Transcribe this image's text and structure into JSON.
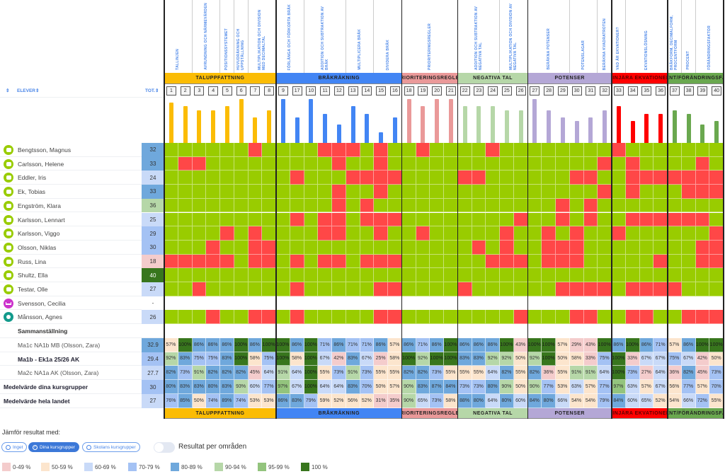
{
  "header": {
    "sort_icon": "⇕",
    "students_label": "ELEVER⇕",
    "total_label": "TOT.⇕"
  },
  "colors": {
    "correct": "#99cc00",
    "wrong": "#ff4747",
    "label_blue": "#4a86e8"
  },
  "groups": [
    {
      "name": "Taluppfattning",
      "color": "#fbbc04",
      "span": 8
    },
    {
      "name": "Bråkräkning",
      "color": "#4285f4",
      "span": 9
    },
    {
      "name": "Prioriteringsregler",
      "color": "#ea9999",
      "span": 4
    },
    {
      "name": "Negativa tal",
      "color": "#b6d7a8",
      "span": 5
    },
    {
      "name": "Potenser",
      "color": "#b4a7d6",
      "span": 6
    },
    {
      "name": "Linjära ekvationer",
      "color": "#ff0000",
      "span": 4
    },
    {
      "name": "Procent/Förändringsfaktor",
      "color": "#6aa84f",
      "span": 4
    }
  ],
  "subtopics": [
    {
      "label": "Tallinjen",
      "span": 2
    },
    {
      "label": "Avrundning och närmevärden",
      "span": 2
    },
    {
      "label": "Positionssystemet",
      "span": 1
    },
    {
      "label": "Huvudräkning och uppställning",
      "span": 1
    },
    {
      "label": "Multiplikation och division med decimaltal",
      "span": 2
    },
    {
      "label": "Förlänga och förkorta bråk",
      "span": 2
    },
    {
      "label": "Addition och subtraktion av bråk",
      "span": 3
    },
    {
      "label": "Multiplicera bråk",
      "span": 2
    },
    {
      "label": "Dividera bråk",
      "span": 2
    },
    {
      "label": "Prioriteringsregler",
      "span": 4
    },
    {
      "label": "Addition och subtraktion av negativa tal",
      "span": 3
    },
    {
      "label": "Multiplikation och division av negativa tal",
      "span": 2
    },
    {
      "label": "Beräkna potenser",
      "span": 3
    },
    {
      "label": "Potenslagar",
      "span": 2
    },
    {
      "label": "Beräkna kvadratroten",
      "span": 1
    },
    {
      "label": "Vad är ekvationer?",
      "span": 1
    },
    {
      "label": "Ekvationslösning",
      "span": 3
    },
    {
      "label": "Bråkform, decimalform, procentform",
      "span": 1
    },
    {
      "label": "Procent",
      "span": 1
    },
    {
      "label": "Förändringsfaktor",
      "span": 2
    }
  ],
  "columns": [
    "1",
    "2",
    "3",
    "4",
    "5",
    "6",
    "7",
    "8",
    "9",
    "17",
    "10",
    "11",
    "12",
    "13",
    "14",
    "15",
    "16",
    "18",
    "19",
    "20",
    "21",
    "22",
    "23",
    "24",
    "25",
    "26",
    "27",
    "28",
    "29",
    "30",
    "31",
    "32",
    "33",
    "34",
    "35",
    "36",
    "37",
    "38",
    "39",
    "40"
  ],
  "students": [
    {
      "name": "Bengtsson, Magnus",
      "status": "active",
      "total": "32",
      "results": "1111110111100010110111101111111101111111"
    },
    {
      "name": "Carlsson, Helene",
      "status": "active",
      "total": "33",
      "results": "1001111111110110111111111111111010111101"
    },
    {
      "name": "Eddler, Iris",
      "status": "active",
      "total": "24",
      "results": "1111111110111000011110011111100110000000"
    },
    {
      "name": "Ek, Tobias",
      "status": "active",
      "total": "33",
      "results": "1111111111110110111111111111111010111000"
    },
    {
      "name": "Engström, Klara",
      "status": "active",
      "total": "36",
      "results": "1111111111110101111111111111010111111111"
    },
    {
      "name": "Karlsson, Lennart",
      "status": "active",
      "total": "25",
      "results": "1111111110100100011111111011010110000001"
    },
    {
      "name": "Karlsson, Viggo",
      "status": "active",
      "total": "29",
      "results": "1111010111100110110111110110101101111110"
    },
    {
      "name": "Olsson, Niklas",
      "status": "active",
      "total": "30",
      "results": "1110110011111111111111010110001111111100"
    },
    {
      "name": "Russ, Lina",
      "status": "active",
      "total": "18",
      "results": "0000010010100100011111100010001111101100"
    },
    {
      "name": "Shultz, Ella",
      "status": "active",
      "total": "40",
      "results": "1111111111111111111111111111111111111111"
    },
    {
      "name": "Testar, Olle",
      "status": "active",
      "total": "27",
      "results": "1101111110111110011110111111000010000111"
    },
    {
      "name": "Svensson, Cecilia",
      "status": "absent",
      "total": "-",
      "results": ""
    },
    {
      "name": "Månsson, Agnes",
      "status": "pending",
      "total": "26",
      "results": "1110110010111110011111111011100110011000"
    }
  ],
  "status_colors": {
    "active": "#99cc00",
    "absent": "#cc33cc",
    "pending": "#139a8c"
  },
  "summary": {
    "title": "Sammanställning",
    "rows": [
      {
        "label": "Ma1c NA1b MB (Olsson, Zara)",
        "style": "indent",
        "total": "32.9",
        "total_pct": 82,
        "values": [
          57,
          100,
          86,
          86,
          86,
          100,
          86,
          100,
          100,
          86,
          100,
          71,
          86,
          71,
          71,
          86,
          57,
          86,
          71,
          86,
          100,
          86,
          86,
          86,
          100,
          43,
          100,
          100,
          57,
          29,
          43,
          100,
          86,
          100,
          86,
          71,
          57,
          86,
          100,
          100
        ]
      },
      {
        "label": "Ma1b - Ek1a 25/26 AK",
        "style": "indent-bold",
        "total": "29.4",
        "total_pct": 74,
        "values": [
          92,
          83,
          75,
          75,
          83,
          100,
          58,
          75,
          100,
          58,
          100,
          67,
          42,
          83,
          67,
          25,
          58,
          100,
          92,
          100,
          100,
          83,
          83,
          92,
          92,
          50,
          92,
          100,
          50,
          58,
          33,
          75,
          100,
          33,
          67,
          67,
          75,
          67,
          42,
          50
        ]
      },
      {
        "label": "Ma2c NA1a AK (Olsson, Zara)",
        "style": "indent",
        "total": "27.7",
        "total_pct": 69,
        "values": [
          82,
          73,
          91,
          82,
          82,
          82,
          45,
          64,
          91,
          64,
          100,
          55,
          73,
          91,
          73,
          55,
          55,
          82,
          82,
          73,
          55,
          55,
          55,
          64,
          82,
          55,
          82,
          36,
          55,
          91,
          91,
          64,
          100,
          73,
          27,
          64,
          36,
          82,
          45,
          73
        ]
      },
      {
        "label": "Medelvärde dina kursgrupper",
        "style": "bold",
        "total": "30",
        "total_pct": 75,
        "values": [
          80,
          83,
          83,
          80,
          83,
          93,
          60,
          77,
          97,
          67,
          100,
          64,
          64,
          83,
          70,
          50,
          57,
          90,
          83,
          87,
          84,
          73,
          73,
          80,
          90,
          50,
          90,
          77,
          53,
          63,
          57,
          77,
          97,
          63,
          57,
          67,
          56,
          77,
          57,
          70
        ]
      },
      {
        "label": "Medelvärde hela landet",
        "style": "bold",
        "total": "27",
        "total_pct": 68,
        "values": [
          76,
          85,
          50,
          74,
          89,
          74,
          53,
          53,
          86,
          83,
          79,
          59,
          52,
          56,
          52,
          31,
          35,
          90,
          65,
          73,
          58,
          88,
          80,
          64,
          80,
          60,
          84,
          80,
          66,
          54,
          54,
          79,
          84,
          60,
          65,
          52,
          54,
          66,
          72,
          55
        ]
      }
    ]
  },
  "compare": {
    "label": "Jämför resultat med:",
    "options": [
      "Inget",
      "Dina kursgrupper",
      "Skolans kursgrupper"
    ],
    "selected": "Dina kursgrupper",
    "toggle_label": "Resultat per områden",
    "toggle_on": false
  },
  "legend": [
    {
      "label": "0-49 %",
      "color": "#f4cccc",
      "min": 0
    },
    {
      "label": "50-59 %",
      "color": "#fce5cd",
      "min": 50
    },
    {
      "label": "60-69 %",
      "color": "#c9daf8",
      "min": 60
    },
    {
      "label": "70-79 %",
      "color": "#a4c2f4",
      "min": 70
    },
    {
      "label": "80-89 %",
      "color": "#6fa8dc",
      "min": 80
    },
    {
      "label": "90-94 %",
      "color": "#b6d7a8",
      "min": 90
    },
    {
      "label": "95-99 %",
      "color": "#93c47d",
      "min": 95
    },
    {
      "label": "100 %",
      "color": "#38761d",
      "min": 100
    }
  ]
}
